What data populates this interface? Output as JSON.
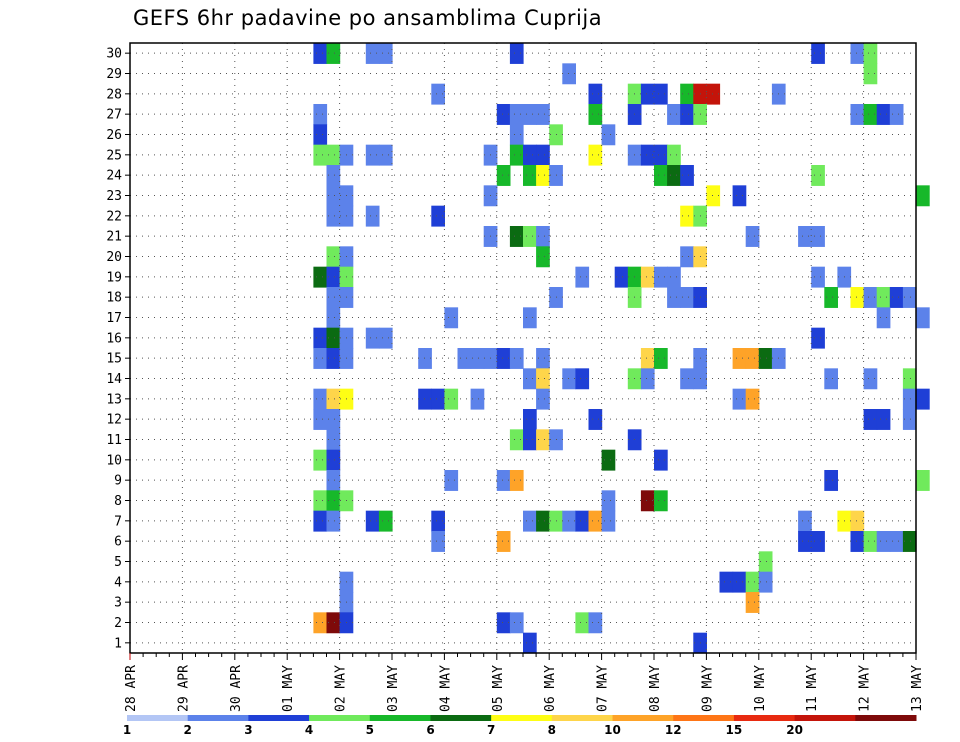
{
  "chart_data": {
    "type": "heatmap",
    "title": "GEFS 6hr padavine po ansamblima Cuprija",
    "xlabel": "",
    "ylabel": "",
    "y_ticks": [
      1,
      2,
      3,
      4,
      5,
      6,
      7,
      8,
      9,
      10,
      11,
      12,
      13,
      14,
      15,
      16,
      17,
      18,
      19,
      20,
      21,
      22,
      23,
      24,
      25,
      26,
      27,
      28,
      29,
      30
    ],
    "ylim": [
      0.5,
      30.5
    ],
    "x_start": "28 APR 00Z",
    "x_steps_per_day": 4,
    "x_steps_total": 61,
    "x_ticks": [
      "28 APR",
      "29 APR",
      "30 APR",
      "01 MAY",
      "02 MAY",
      "03 MAY",
      "04 MAY",
      "05 MAY",
      "06 MAY",
      "07 MAY",
      "08 MAY",
      "09 MAY",
      "10 MAY",
      "11 MAY",
      "12 MAY",
      "13 MAY"
    ],
    "grid": true,
    "legend": {
      "position": "bottom",
      "labels": [
        "1",
        "2",
        "3",
        "4",
        "5",
        "6",
        "7",
        "8",
        "10",
        "12",
        "15",
        "20"
      ],
      "colors": [
        "#b3c6f5",
        "#5c82ea",
        "#1f3fd6",
        "#70ea5c",
        "#17b82a",
        "#0b6b12",
        "#fefe14",
        "#fed54a",
        "#fea328",
        "#fe7516",
        "#e82a10",
        "#c4140a",
        "#7e0a0a"
      ]
    },
    "points": [
      [
        14,
        30,
        2
      ],
      [
        15,
        30,
        4
      ],
      [
        18,
        30,
        1
      ],
      [
        19,
        30,
        1
      ],
      [
        29,
        30,
        2
      ],
      [
        52,
        30,
        2
      ],
      [
        55,
        30,
        1
      ],
      [
        56,
        30,
        3
      ],
      [
        33,
        29,
        1
      ],
      [
        56,
        29,
        3
      ],
      [
        23,
        28,
        1
      ],
      [
        35,
        28,
        2
      ],
      [
        38,
        28,
        3
      ],
      [
        39,
        28,
        2
      ],
      [
        40,
        28,
        2
      ],
      [
        42,
        28,
        4
      ],
      [
        43,
        28,
        11
      ],
      [
        44,
        28,
        11
      ],
      [
        49,
        28,
        1
      ],
      [
        14,
        27,
        1
      ],
      [
        28,
        27,
        2
      ],
      [
        29,
        27,
        1
      ],
      [
        30,
        27,
        1
      ],
      [
        31,
        27,
        1
      ],
      [
        35,
        27,
        4
      ],
      [
        38,
        27,
        2
      ],
      [
        41,
        27,
        1
      ],
      [
        42,
        27,
        2
      ],
      [
        43,
        27,
        3
      ],
      [
        55,
        27,
        1
      ],
      [
        56,
        27,
        4
      ],
      [
        57,
        27,
        2
      ],
      [
        58,
        27,
        1
      ],
      [
        14,
        26,
        2
      ],
      [
        29,
        26,
        1
      ],
      [
        32,
        26,
        3
      ],
      [
        36,
        26,
        1
      ],
      [
        14,
        25,
        3
      ],
      [
        15,
        25,
        3
      ],
      [
        16,
        25,
        1
      ],
      [
        18,
        25,
        1
      ],
      [
        19,
        25,
        1
      ],
      [
        27,
        25,
        1
      ],
      [
        29,
        25,
        4
      ],
      [
        30,
        25,
        2
      ],
      [
        31,
        25,
        2
      ],
      [
        35,
        25,
        6
      ],
      [
        38,
        25,
        1
      ],
      [
        39,
        25,
        2
      ],
      [
        40,
        25,
        2
      ],
      [
        41,
        25,
        3
      ],
      [
        15,
        24,
        1
      ],
      [
        28,
        24,
        4
      ],
      [
        30,
        24,
        4
      ],
      [
        31,
        24,
        6
      ],
      [
        32,
        24,
        1
      ],
      [
        40,
        24,
        4
      ],
      [
        41,
        24,
        5
      ],
      [
        42,
        24,
        2
      ],
      [
        52,
        24,
        3
      ],
      [
        15,
        23,
        1
      ],
      [
        16,
        23,
        1
      ],
      [
        27,
        23,
        1
      ],
      [
        44,
        23,
        6
      ],
      [
        46,
        23,
        2
      ],
      [
        60,
        23,
        4
      ],
      [
        15,
        22,
        1
      ],
      [
        16,
        22,
        1
      ],
      [
        18,
        22,
        1
      ],
      [
        23,
        22,
        2
      ],
      [
        42,
        22,
        6
      ],
      [
        43,
        22,
        3
      ],
      [
        27,
        21,
        1
      ],
      [
        29,
        21,
        5
      ],
      [
        30,
        21,
        3
      ],
      [
        31,
        21,
        1
      ],
      [
        47,
        21,
        1
      ],
      [
        51,
        21,
        1
      ],
      [
        52,
        21,
        1
      ],
      [
        15,
        20,
        3
      ],
      [
        16,
        20,
        1
      ],
      [
        31,
        20,
        4
      ],
      [
        42,
        20,
        1
      ],
      [
        43,
        20,
        7
      ],
      [
        14,
        19,
        5
      ],
      [
        15,
        19,
        2
      ],
      [
        16,
        19,
        3
      ],
      [
        34,
        19,
        1
      ],
      [
        37,
        19,
        2
      ],
      [
        38,
        19,
        4
      ],
      [
        39,
        19,
        7
      ],
      [
        40,
        19,
        1
      ],
      [
        41,
        19,
        1
      ],
      [
        52,
        19,
        1
      ],
      [
        54,
        19,
        1
      ],
      [
        15,
        18,
        1
      ],
      [
        16,
        18,
        1
      ],
      [
        32,
        18,
        1
      ],
      [
        38,
        18,
        3
      ],
      [
        41,
        18,
        1
      ],
      [
        42,
        18,
        1
      ],
      [
        43,
        18,
        2
      ],
      [
        53,
        18,
        4
      ],
      [
        55,
        18,
        6
      ],
      [
        56,
        18,
        1
      ],
      [
        57,
        18,
        3
      ],
      [
        58,
        18,
        2
      ],
      [
        59,
        18,
        1
      ],
      [
        15,
        17,
        1
      ],
      [
        24,
        17,
        1
      ],
      [
        30,
        17,
        1
      ],
      [
        57,
        17,
        1
      ],
      [
        60,
        17,
        1
      ],
      [
        14,
        16,
        2
      ],
      [
        15,
        16,
        5
      ],
      [
        16,
        16,
        1
      ],
      [
        18,
        16,
        1
      ],
      [
        19,
        16,
        1
      ],
      [
        52,
        16,
        2
      ],
      [
        14,
        15,
        1
      ],
      [
        15,
        15,
        2
      ],
      [
        16,
        15,
        1
      ],
      [
        22,
        15,
        1
      ],
      [
        25,
        15,
        1
      ],
      [
        26,
        15,
        1
      ],
      [
        27,
        15,
        1
      ],
      [
        28,
        15,
        2
      ],
      [
        29,
        15,
        1
      ],
      [
        31,
        15,
        1
      ],
      [
        39,
        15,
        7
      ],
      [
        40,
        15,
        4
      ],
      [
        43,
        15,
        1
      ],
      [
        46,
        15,
        8
      ],
      [
        47,
        15,
        8
      ],
      [
        48,
        15,
        5
      ],
      [
        49,
        15,
        1
      ],
      [
        30,
        14,
        1
      ],
      [
        31,
        14,
        7
      ],
      [
        33,
        14,
        1
      ],
      [
        34,
        14,
        2
      ],
      [
        38,
        14,
        3
      ],
      [
        39,
        14,
        1
      ],
      [
        42,
        14,
        1
      ],
      [
        43,
        14,
        1
      ],
      [
        53,
        14,
        1
      ],
      [
        56,
        14,
        1
      ],
      [
        59,
        14,
        3
      ],
      [
        14,
        13,
        1
      ],
      [
        15,
        13,
        7
      ],
      [
        16,
        13,
        6
      ],
      [
        22,
        13,
        2
      ],
      [
        23,
        13,
        2
      ],
      [
        24,
        13,
        3
      ],
      [
        26,
        13,
        1
      ],
      [
        31,
        13,
        1
      ],
      [
        46,
        13,
        1
      ],
      [
        47,
        13,
        8
      ],
      [
        59,
        13,
        1
      ],
      [
        60,
        13,
        2
      ],
      [
        14,
        12,
        1
      ],
      [
        15,
        12,
        1
      ],
      [
        30,
        12,
        2
      ],
      [
        35,
        12,
        2
      ],
      [
        56,
        12,
        2
      ],
      [
        57,
        12,
        2
      ],
      [
        59,
        12,
        1
      ],
      [
        15,
        11,
        1
      ],
      [
        29,
        11,
        3
      ],
      [
        30,
        11,
        2
      ],
      [
        31,
        11,
        7
      ],
      [
        32,
        11,
        1
      ],
      [
        38,
        11,
        2
      ],
      [
        14,
        10,
        3
      ],
      [
        15,
        10,
        2
      ],
      [
        36,
        10,
        5
      ],
      [
        40,
        10,
        2
      ],
      [
        15,
        9,
        1
      ],
      [
        24,
        9,
        1
      ],
      [
        28,
        9,
        1
      ],
      [
        29,
        9,
        8
      ],
      [
        53,
        9,
        2
      ],
      [
        60,
        9,
        3
      ],
      [
        14,
        8,
        3
      ],
      [
        15,
        8,
        4
      ],
      [
        16,
        8,
        3
      ],
      [
        36,
        8,
        1
      ],
      [
        39,
        8,
        12
      ],
      [
        40,
        8,
        4
      ],
      [
        14,
        7,
        2
      ],
      [
        15,
        7,
        1
      ],
      [
        18,
        7,
        2
      ],
      [
        19,
        7,
        4
      ],
      [
        23,
        7,
        2
      ],
      [
        30,
        7,
        1
      ],
      [
        31,
        7,
        5
      ],
      [
        32,
        7,
        3
      ],
      [
        33,
        7,
        1
      ],
      [
        34,
        7,
        2
      ],
      [
        35,
        7,
        8
      ],
      [
        36,
        7,
        1
      ],
      [
        51,
        7,
        1
      ],
      [
        54,
        7,
        6
      ],
      [
        55,
        7,
        7
      ],
      [
        23,
        6,
        1
      ],
      [
        28,
        6,
        8
      ],
      [
        51,
        6,
        2
      ],
      [
        52,
        6,
        2
      ],
      [
        55,
        6,
        2
      ],
      [
        56,
        6,
        3
      ],
      [
        57,
        6,
        1
      ],
      [
        58,
        6,
        1
      ],
      [
        59,
        6,
        5
      ],
      [
        48,
        5,
        3
      ],
      [
        16,
        4,
        1
      ],
      [
        45,
        4,
        2
      ],
      [
        46,
        4,
        2
      ],
      [
        47,
        4,
        3
      ],
      [
        48,
        4,
        1
      ],
      [
        16,
        3,
        1
      ],
      [
        47,
        3,
        8
      ],
      [
        14,
        2,
        8
      ],
      [
        15,
        2,
        12
      ],
      [
        16,
        2,
        2
      ],
      [
        28,
        2,
        2
      ],
      [
        29,
        2,
        1
      ],
      [
        34,
        2,
        3
      ],
      [
        35,
        2,
        1
      ],
      [
        30,
        1,
        2
      ],
      [
        43,
        1,
        2
      ]
    ]
  }
}
